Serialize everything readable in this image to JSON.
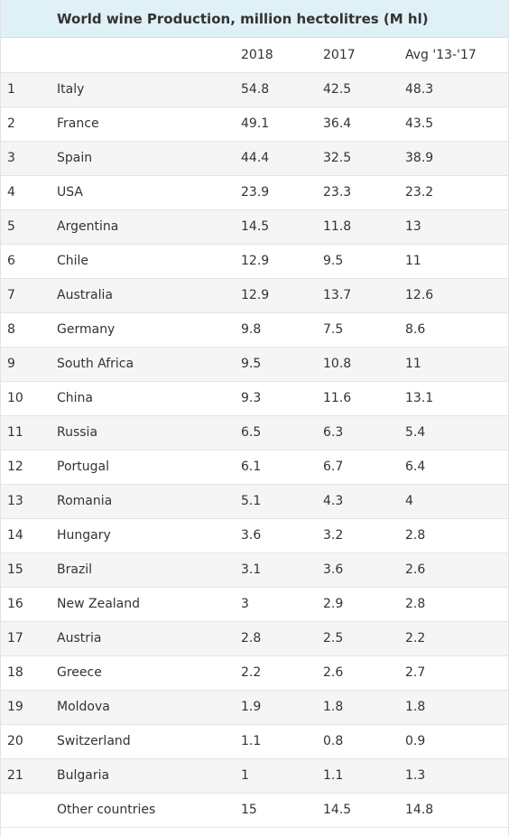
{
  "chart_data": {
    "type": "table",
    "title": "World wine Production, million hectolitres (M hl)",
    "columns": [
      "",
      "",
      "2018",
      "2017",
      "Avg '13-'17"
    ],
    "rows": [
      {
        "rank": "1",
        "country": "Italy",
        "y2018": "54.8",
        "y2017": "42.5",
        "avg": "48.3"
      },
      {
        "rank": "2",
        "country": "France",
        "y2018": "49.1",
        "y2017": "36.4",
        "avg": "43.5"
      },
      {
        "rank": "3",
        "country": "Spain",
        "y2018": "44.4",
        "y2017": "32.5",
        "avg": "38.9"
      },
      {
        "rank": "4",
        "country": "USA",
        "y2018": "23.9",
        "y2017": "23.3",
        "avg": "23.2"
      },
      {
        "rank": "5",
        "country": "Argentina",
        "y2018": "14.5",
        "y2017": "11.8",
        "avg": "13"
      },
      {
        "rank": "6",
        "country": "Chile",
        "y2018": "12.9",
        "y2017": "9.5",
        "avg": "11"
      },
      {
        "rank": "7",
        "country": "Australia",
        "y2018": "12.9",
        "y2017": "13.7",
        "avg": "12.6"
      },
      {
        "rank": "8",
        "country": "Germany",
        "y2018": "9.8",
        "y2017": "7.5",
        "avg": "8.6"
      },
      {
        "rank": "9",
        "country": "South Africa",
        "y2018": "9.5",
        "y2017": "10.8",
        "avg": "11"
      },
      {
        "rank": "10",
        "country": "China",
        "y2018": "9.3",
        "y2017": "11.6",
        "avg": "13.1"
      },
      {
        "rank": "11",
        "country": "Russia",
        "y2018": "6.5",
        "y2017": "6.3",
        "avg": "5.4"
      },
      {
        "rank": "12",
        "country": "Portugal",
        "y2018": "6.1",
        "y2017": "6.7",
        "avg": "6.4"
      },
      {
        "rank": "13",
        "country": "Romania",
        "y2018": "5.1",
        "y2017": "4.3",
        "avg": "4"
      },
      {
        "rank": "14",
        "country": "Hungary",
        "y2018": "3.6",
        "y2017": "3.2",
        "avg": "2.8"
      },
      {
        "rank": "15",
        "country": "Brazil",
        "y2018": "3.1",
        "y2017": "3.6",
        "avg": "2.6"
      },
      {
        "rank": "16",
        "country": "New Zealand",
        "y2018": "3",
        "y2017": "2.9",
        "avg": "2.8"
      },
      {
        "rank": "17",
        "country": "Austria",
        "y2018": "2.8",
        "y2017": "2.5",
        "avg": "2.2"
      },
      {
        "rank": "18",
        "country": "Greece",
        "y2018": "2.2",
        "y2017": "2.6",
        "avg": "2.7"
      },
      {
        "rank": "19",
        "country": "Moldova",
        "y2018": "1.9",
        "y2017": "1.8",
        "avg": "1.8"
      },
      {
        "rank": "20",
        "country": "Switzerland",
        "y2018": "1.1",
        "y2017": "0.8",
        "avg": "0.9"
      },
      {
        "rank": "21",
        "country": "Bulgaria",
        "y2018": "1",
        "y2017": "1.1",
        "avg": "1.3"
      },
      {
        "rank": "",
        "country": "Other countries",
        "y2018": "15",
        "y2017": "14.5",
        "avg": "14.8"
      }
    ]
  },
  "colors": {
    "title_background": "#dff0f7",
    "stripe": "#f5f5f5",
    "text": "#333333"
  }
}
